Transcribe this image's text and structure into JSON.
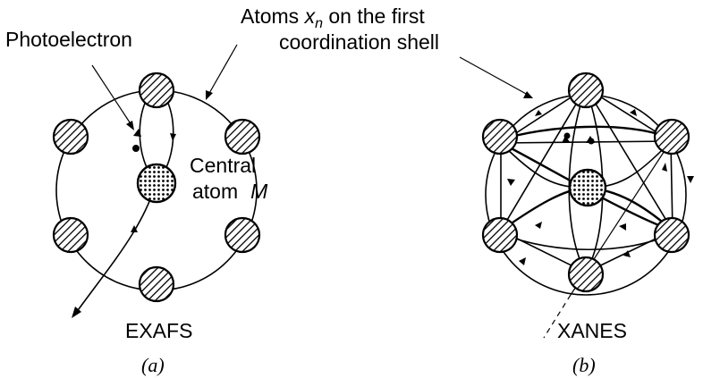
{
  "labels": {
    "photoelectron": "Photoelectron",
    "atoms_line1_prefix": "Atoms ",
    "atoms_var": "x",
    "atoms_sub": "n",
    "atoms_line1_suffix": " on the first",
    "atoms_line2": "coordination shell",
    "central_line1": "Central",
    "central_line2": "atom",
    "central_var": "M",
    "exafs": "EXAFS",
    "xanes": "XANES",
    "caption_a": "(a)",
    "caption_b": "(b)"
  },
  "colors": {
    "ink": "#000000",
    "background": "#ffffff"
  }
}
